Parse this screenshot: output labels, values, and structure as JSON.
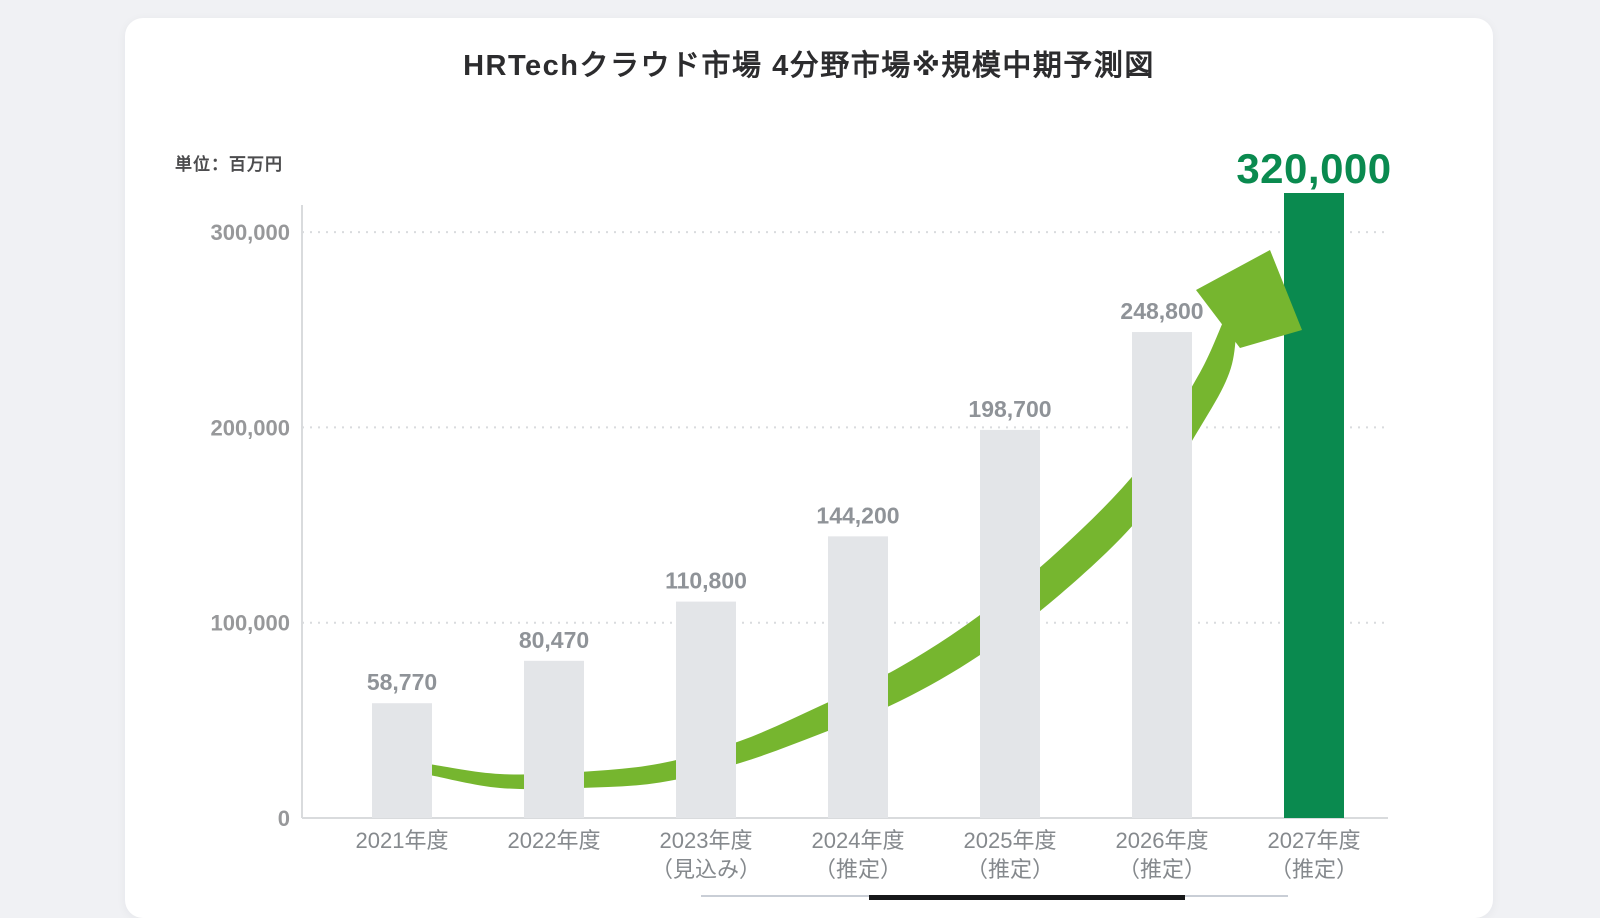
{
  "title": "HRTechクラウド市場 4分野市場※規模中期予測図",
  "chart_data": {
    "type": "bar",
    "title": "HRTechクラウド市場 4分野市場※規模中期予測図",
    "unit": "単位：百万円",
    "categories": [
      "2021年度",
      "2022年度",
      "2023年度",
      "2024年度",
      "2025年度",
      "2026年度",
      "2027年度"
    ],
    "sublabels": [
      "",
      "",
      "（見込み）",
      "（推定）",
      "（推定）",
      "（推定）",
      "（推定）"
    ],
    "values": [
      58770,
      80470,
      110800,
      144200,
      198700,
      248800,
      320000
    ],
    "value_labels": [
      "58,770",
      "80,470",
      "110,800",
      "144,200",
      "198,700",
      "248,800",
      "320,000"
    ],
    "highlight_index": 6,
    "y_axis": {
      "ticks": [
        0,
        100000,
        200000,
        300000
      ],
      "tick_labels": [
        "0",
        "100,000",
        "200,000",
        "300,000"
      ],
      "max": 320000
    },
    "grid": true,
    "legend": "none",
    "annotations": [
      "growth arrow from 2021 bar sweeping up to 2027 bar"
    ],
    "colors": {
      "bar": "#e3e5e8",
      "highlight_bar": "#0a8a4f",
      "arrow": "#76b62f",
      "value_label": "#8f9398",
      "highlight_value_label": "#0a8a4f",
      "axis_text": "#97989a",
      "x_axis_text": "#85898d",
      "grid_line": "#d9dbde"
    }
  }
}
